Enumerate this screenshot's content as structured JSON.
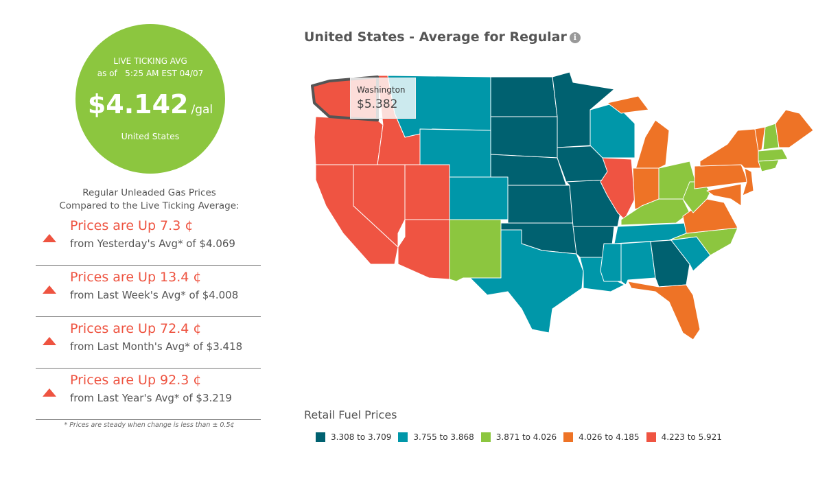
{
  "live_avg": {
    "label": "LIVE TICKING AVG",
    "as_of": "as of   5:25 AM EST 04/07",
    "price": "$4.142",
    "unit": "/gal",
    "location": "United States"
  },
  "comparison": {
    "title_line1": "Regular Unleaded Gas Prices",
    "title_line2": "Compared to the Live Ticking Average:",
    "rows": [
      {
        "direction": "up",
        "main": "Prices are Up 7.3 ¢",
        "sub": "from Yesterday's Avg* of $4.069"
      },
      {
        "direction": "up",
        "main": "Prices are Up 13.4 ¢",
        "sub": "from Last Week's Avg* of $4.008"
      },
      {
        "direction": "up",
        "main": "Prices are Up 72.4 ¢",
        "sub": "from Last Month's Avg* of $3.418"
      },
      {
        "direction": "up",
        "main": "Prices are Up 92.3 ¢",
        "sub": "from Last Year's Avg* of $3.219"
      }
    ],
    "note": "* Prices are steady when change is less than ± 0.5¢"
  },
  "map": {
    "title": "United States - Average for Regular",
    "info_icon": "i",
    "tooltip": {
      "state": "Washington",
      "value": "$5.382"
    },
    "legend_title": "Retail Fuel Prices",
    "legend": [
      {
        "label": "3.308 to 3.709",
        "color": "#006170"
      },
      {
        "label": "3.755 to 3.868",
        "color": "#0097a9"
      },
      {
        "label": "3.871 to 4.026",
        "color": "#8cc63f"
      },
      {
        "label": "4.026 to 4.185",
        "color": "#ee7326"
      },
      {
        "label": "4.223 to 5.921",
        "color": "#ef5442"
      }
    ],
    "states": {
      "WA": 4,
      "OR": 4,
      "CA": 4,
      "NV": 4,
      "ID": 4,
      "UT": 4,
      "AZ": 4,
      "MT": 1,
      "WY": 1,
      "CO": 1,
      "NM": 2,
      "ND": 0,
      "SD": 0,
      "NE": 0,
      "KS": 0,
      "OK": 0,
      "TX": 1,
      "MN": 0,
      "IA": 0,
      "MO": 0,
      "AR": 0,
      "LA": 1,
      "WI": 1,
      "IL": 4,
      "MI": 3,
      "IN": 3,
      "OH": 2,
      "KY": 2,
      "TN": 1,
      "MS": 1,
      "AL": 1,
      "GA": 0,
      "FL": 3,
      "SC": 1,
      "NC": 2,
      "VA": 3,
      "WV": 2,
      "PA": 3,
      "NY": 3,
      "MD": 3,
      "NJ": 3,
      "VT": 3,
      "NH": 2,
      "ME": 3,
      "MA": 2,
      "CT": 2
    }
  }
}
